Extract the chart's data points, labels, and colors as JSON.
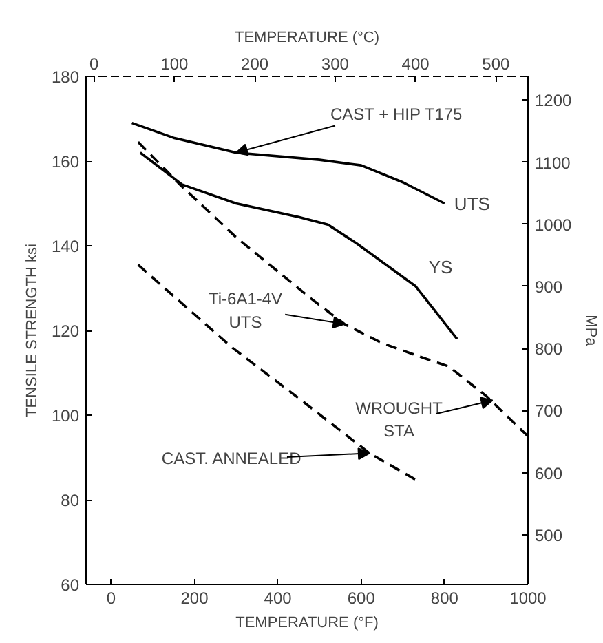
{
  "chart_data": {
    "type": "line",
    "xlabel": "TEMPERATURE (°F)",
    "x2label": "TEMPERATURE (°C)",
    "ylabel": "TENSILE STRENGTH ksi",
    "y2label": "MPa",
    "xlim": [
      -60,
      1000
    ],
    "xticks": [
      0,
      200,
      400,
      600,
      800,
      1000
    ],
    "x2lim": [
      -10,
      540
    ],
    "x2ticks": [
      0,
      100,
      200,
      300,
      400,
      500
    ],
    "ylim": [
      60,
      180
    ],
    "yticks": [
      60,
      80,
      100,
      120,
      140,
      160,
      180
    ],
    "y2lim": [
      420,
      1238
    ],
    "y2ticks": [
      500,
      600,
      700,
      800,
      900,
      1000,
      1100,
      1200
    ],
    "grid": false,
    "legend": false,
    "marker": "none",
    "series": [
      {
        "name": "UTS",
        "color": "#000000",
        "line_style": "solid",
        "x": [
          50,
          150,
          300,
          500,
          600,
          700,
          800
        ],
        "values": [
          169,
          165.5,
          162,
          160.3,
          159,
          155,
          150
        ]
      },
      {
        "name": "YS",
        "color": "#000000",
        "line_style": "solid",
        "x": [
          70,
          170,
          300,
          450,
          520,
          590,
          730,
          830
        ],
        "values": [
          162,
          154.5,
          150,
          146.8,
          145,
          140.5,
          130.5,
          118
        ]
      },
      {
        "color": "#000000",
        "line_style": "dashed",
        "x": [
          65,
          165,
          300,
          480,
          560,
          650,
          750,
          810,
          900,
          1000
        ],
        "values": [
          164.5,
          154.5,
          142,
          127.5,
          121.5,
          117,
          113.5,
          111.5,
          104.5,
          95
        ]
      },
      {
        "color": "#000000",
        "line_style": "dashed",
        "x": [
          65,
          290,
          450,
          620,
          735
        ],
        "values": [
          135.5,
          116,
          104,
          91,
          84.5
        ]
      }
    ],
    "annotations": [
      {
        "text": "CAST  +  HIP T175",
        "x": 300,
        "y": 162
      },
      {
        "text": "Ti-6A1-4V\nUTS",
        "x": 560,
        "y": 121.5
      },
      {
        "text": "WROUGHT\nSTA",
        "x": 915,
        "y": 103.5
      },
      {
        "text": "CAST. ANNEALED",
        "x": 620,
        "y": 91
      }
    ]
  }
}
